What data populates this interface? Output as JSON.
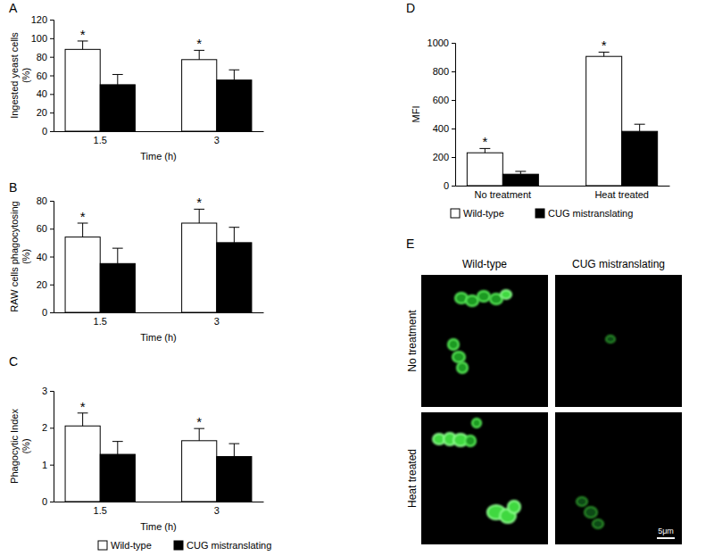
{
  "chart_data": [
    {
      "type": "bar",
      "title": "A",
      "y_label": [
        "Ingested yeast cells",
        "(%)"
      ],
      "x_label": "Time (h)",
      "categories": [
        "1.5",
        "3"
      ],
      "series": [
        {
          "color": "#ffffff",
          "values": [
            88,
            77
          ],
          "errors": [
            9,
            10
          ],
          "annotations": [
            "*",
            "*"
          ]
        },
        {
          "color": "#000000",
          "values": [
            50,
            55
          ],
          "errors": [
            11,
            11
          ]
        }
      ],
      "ylim": [
        0,
        120
      ],
      "yticks": [
        0,
        20,
        40,
        60,
        80,
        100,
        120
      ]
    },
    {
      "type": "bar",
      "title": "B",
      "y_label": [
        "RAW cells phagocytosing",
        "(%)"
      ],
      "x_label": "Time (h)",
      "categories": [
        "1.5",
        "3"
      ],
      "series": [
        {
          "color": "#ffffff",
          "values": [
            54,
            64
          ],
          "errors": [
            10,
            10
          ],
          "annotations": [
            "*",
            "*"
          ]
        },
        {
          "color": "#000000",
          "values": [
            35,
            50
          ],
          "errors": [
            11,
            11
          ]
        }
      ],
      "ylim": [
        0,
        80
      ],
      "yticks": [
        0,
        20,
        40,
        60,
        80
      ]
    },
    {
      "type": "bar",
      "title": "C",
      "y_label": [
        "Phagocytic Index",
        "(%)"
      ],
      "x_label": "Time (h)",
      "categories": [
        "1.5",
        "3"
      ],
      "series": [
        {
          "name": "Wild-type",
          "color": "#ffffff",
          "values": [
            2.05,
            1.65
          ],
          "errors": [
            0.35,
            0.33
          ],
          "annotations": [
            "*",
            "*"
          ]
        },
        {
          "name": "CUG mistranslating",
          "color": "#000000",
          "values": [
            1.28,
            1.22
          ],
          "errors": [
            0.35,
            0.35
          ]
        }
      ],
      "ylim": [
        0,
        3
      ],
      "yticks": [
        0,
        1,
        2,
        3
      ],
      "legend": "bottom"
    },
    {
      "type": "bar",
      "title": "D",
      "y_label": "MFI",
      "categories": [
        "No treatment",
        "Heat treated"
      ],
      "series": [
        {
          "name": "Wild-type",
          "color": "#ffffff",
          "values": [
            230,
            905
          ],
          "errors": [
            30,
            30
          ],
          "annotations": [
            "*",
            "*"
          ]
        },
        {
          "name": "CUG mistranslating",
          "color": "#000000",
          "values": [
            80,
            380
          ],
          "errors": [
            20,
            50
          ]
        }
      ],
      "ylim": [
        0,
        1000
      ],
      "yticks": [
        0,
        200,
        400,
        600,
        800,
        1000
      ],
      "legend": "bottom"
    },
    {
      "type": "image",
      "title": "E",
      "columns": [
        "Wild-type",
        "CUG mistranslating"
      ],
      "rows": [
        "No treatment",
        "Heat treated"
      ],
      "scale_bar": "5μm"
    }
  ]
}
